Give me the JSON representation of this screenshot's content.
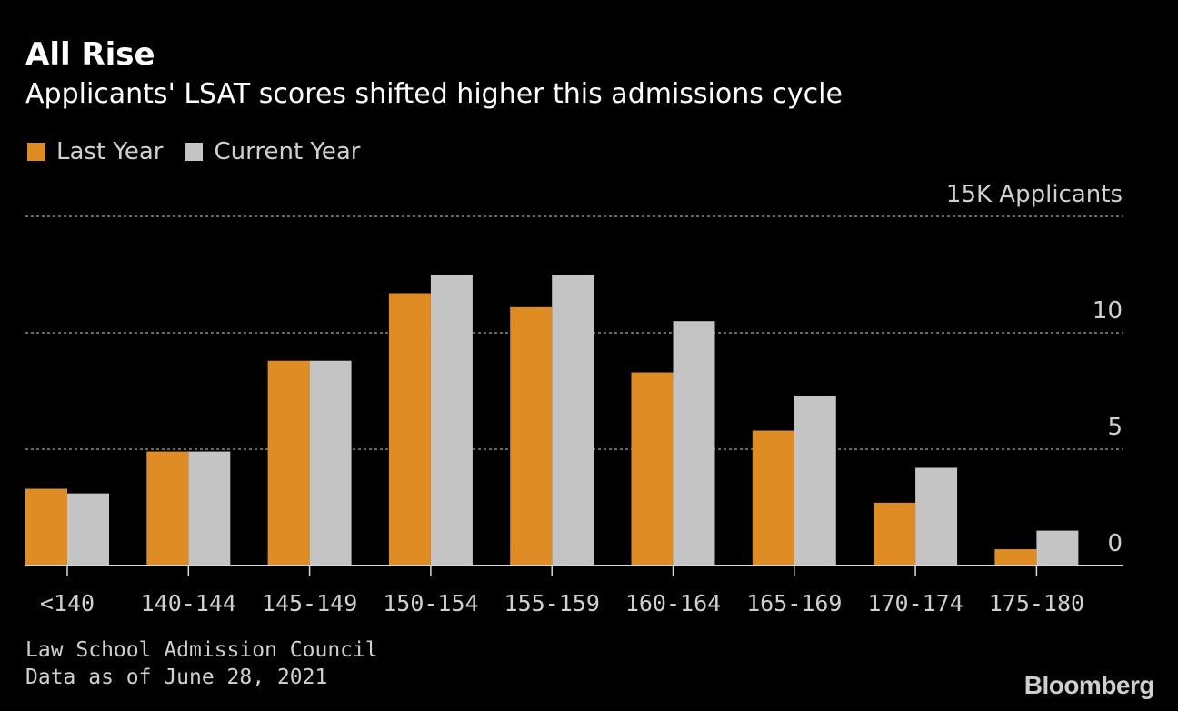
{
  "header": {
    "title": "All Rise",
    "subtitle": "Applicants' LSAT scores shifted higher this admissions cycle"
  },
  "legend": {
    "last_year": "Last Year",
    "current_year": "Current Year"
  },
  "footer": {
    "source": "Law School Admission Council",
    "note": "Data as of June 28, 2021",
    "brand": "Bloomberg"
  },
  "colors": {
    "last_year": "#e08c25",
    "current_year": "#c4c4c4",
    "grid": "#8a8a8a",
    "axis": "#d8d8d8",
    "text": "#d0d0d0"
  },
  "chart_data": {
    "type": "bar",
    "title": "All Rise",
    "subtitle": "Applicants' LSAT scores shifted higher this admissions cycle",
    "categories": [
      "<140",
      "140-144",
      "145-149",
      "150-154",
      "155-159",
      "160-164",
      "165-169",
      "170-174",
      "175-180"
    ],
    "series": [
      {
        "name": "Last Year",
        "values": [
          3.3,
          4.9,
          8.8,
          11.7,
          11.1,
          8.3,
          5.8,
          2.7,
          0.7
        ]
      },
      {
        "name": "Current Year",
        "values": [
          3.1,
          4.9,
          8.8,
          12.5,
          12.5,
          10.5,
          7.3,
          4.2,
          1.5
        ]
      }
    ],
    "yticks": [
      0,
      5,
      10,
      15
    ],
    "ytick_labels": [
      "0",
      "5",
      "10",
      "15K Applicants"
    ],
    "ylim": [
      0,
      15
    ],
    "ylabel": "",
    "xlabel": "",
    "grid": true,
    "legend_position": "top-left"
  }
}
